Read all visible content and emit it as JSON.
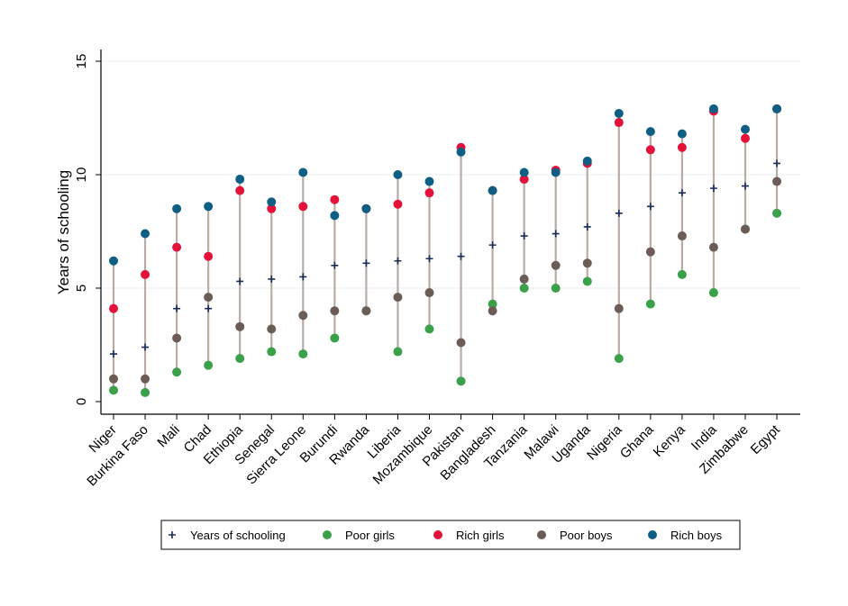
{
  "chart_data": {
    "type": "scatter",
    "title": "",
    "xlabel": "",
    "ylabel": "Years of schooling",
    "ylim": [
      0,
      15
    ],
    "yticks": [
      0,
      5,
      10,
      15
    ],
    "grid": true,
    "legend_position": "bottom",
    "categories": [
      "Niger",
      "Burkina Faso",
      "Mali",
      "Chad",
      "Ethiopia",
      "Senegal",
      "Sierra Leone",
      "Burundi",
      "Rwanda",
      "Liberia",
      "Mozambique",
      "Pakistan",
      "Bangladesh",
      "Tanzania",
      "Malawi",
      "Uganda",
      "Nigeria",
      "Ghana",
      "Kenya",
      "India",
      "Zimbabwe",
      "Egypt"
    ],
    "series": [
      {
        "name": "Years of schooling",
        "marker": "plus",
        "color": "#1a2e5a",
        "values": [
          2.1,
          2.4,
          4.1,
          4.1,
          5.3,
          5.4,
          5.5,
          6.0,
          6.1,
          6.2,
          6.3,
          6.4,
          6.9,
          7.3,
          7.4,
          7.7,
          8.3,
          8.6,
          9.2,
          9.4,
          9.5,
          10.5
        ]
      },
      {
        "name": "Poor girls",
        "marker": "circle",
        "color": "#3aa04a",
        "values": [
          0.5,
          0.4,
          1.3,
          1.6,
          1.9,
          2.2,
          2.1,
          2.8,
          4.0,
          2.2,
          3.2,
          0.9,
          4.3,
          5.0,
          5.0,
          5.3,
          1.9,
          4.3,
          5.6,
          4.8,
          7.6,
          8.3
        ]
      },
      {
        "name": "Rich girls",
        "marker": "circle",
        "color": "#e2123a",
        "values": [
          4.1,
          5.6,
          6.8,
          6.4,
          9.3,
          8.5,
          8.6,
          8.9,
          8.5,
          8.7,
          9.2,
          11.2,
          9.3,
          9.8,
          10.2,
          10.5,
          12.3,
          11.1,
          11.2,
          12.8,
          11.6,
          12.9
        ]
      },
      {
        "name": "Poor boys",
        "marker": "circle",
        "color": "#6b5d55",
        "values": [
          1.0,
          1.0,
          2.8,
          4.6,
          3.3,
          3.2,
          3.8,
          4.0,
          4.0,
          4.6,
          4.8,
          2.6,
          4.0,
          5.4,
          6.0,
          6.1,
          4.1,
          6.6,
          7.3,
          6.8,
          7.6,
          9.7
        ]
      },
      {
        "name": "Rich boys",
        "marker": "circle",
        "color": "#0f5f85",
        "values": [
          6.2,
          7.4,
          8.5,
          8.6,
          9.8,
          8.8,
          10.1,
          8.2,
          8.5,
          10.0,
          9.7,
          11.0,
          9.3,
          10.1,
          10.1,
          10.6,
          12.7,
          11.9,
          11.8,
          12.9,
          12.0,
          12.9
        ]
      }
    ],
    "colors": {
      "range_line": "#b8ada5",
      "axis": "#000000",
      "grid": "#e8edf0"
    }
  }
}
